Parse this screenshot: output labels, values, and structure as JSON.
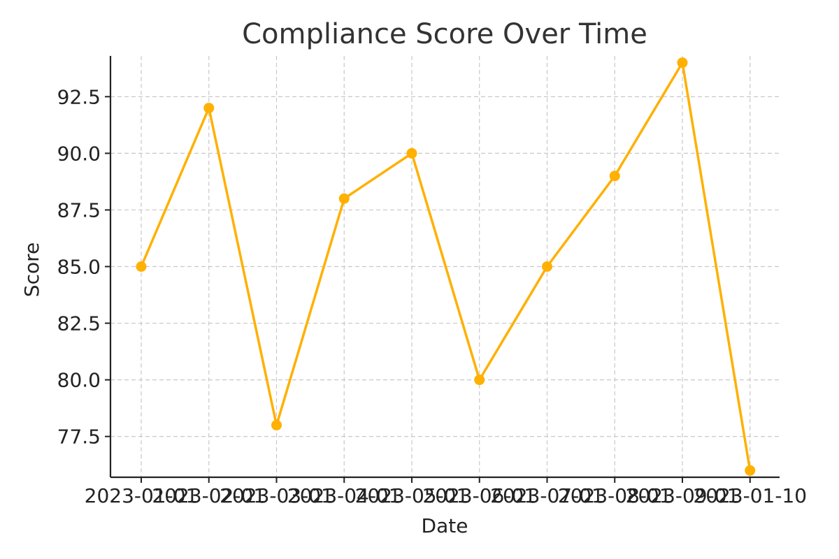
{
  "chart_data": {
    "type": "line",
    "title": "Compliance Score Over Time",
    "xlabel": "Date",
    "ylabel": "Score",
    "x": [
      "2023-01-01",
      "2023-02-01",
      "2023-03-01",
      "2023-04-01",
      "2023-05-01",
      "2023-06-01",
      "2023-07-01",
      "2023-08-01",
      "2023-09-01",
      "2023-01-10"
    ],
    "series": [
      {
        "values": [
          85,
          92,
          78,
          88,
          90,
          80,
          85,
          89,
          94,
          76
        ]
      }
    ],
    "ylim": [
      75.7,
      94.3
    ],
    "yticks": [
      77.5,
      80.0,
      82.5,
      85.0,
      87.5,
      90.0,
      92.5
    ],
    "ytick_labels": [
      "77.5",
      "80.0",
      "82.5",
      "85.0",
      "87.5",
      "90.0",
      "92.5"
    ],
    "grid": true,
    "line_color": "#FFB000",
    "marker": "circle"
  }
}
